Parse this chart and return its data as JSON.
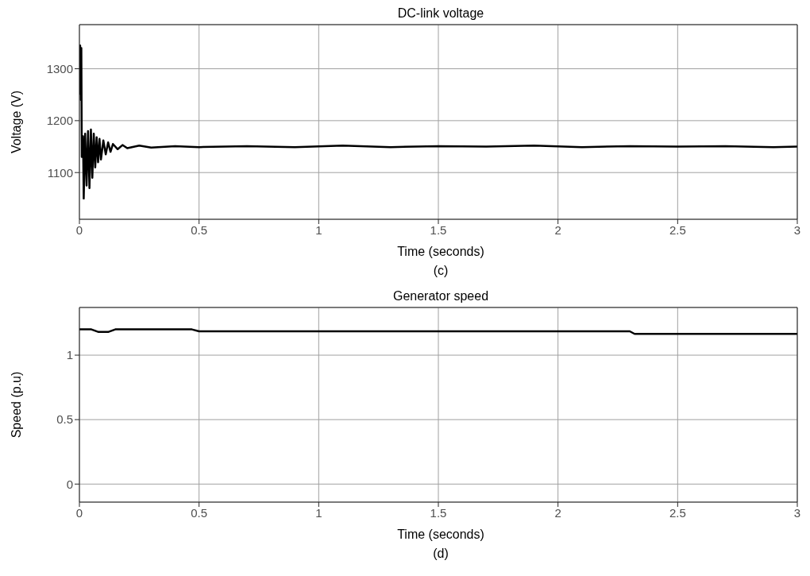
{
  "chart_data": [
    {
      "type": "line",
      "title": "DC-link voltage",
      "xlabel": "Time (seconds)",
      "ylabel": "Voltage (V)",
      "annotations": [
        "(c)"
      ],
      "x": [
        0,
        0.003,
        0.006,
        0.008,
        0.01,
        0.015,
        0.018,
        0.024,
        0.03,
        0.036,
        0.042,
        0.048,
        0.054,
        0.06,
        0.066,
        0.072,
        0.078,
        0.084,
        0.09,
        0.1,
        0.11,
        0.12,
        0.13,
        0.14,
        0.16,
        0.18,
        0.2,
        0.25,
        0.3,
        0.4,
        0.5,
        0.7,
        0.9,
        1.1,
        1.3,
        1.5,
        1.7,
        1.9,
        2.1,
        2.3,
        2.5,
        2.7,
        2.9,
        3
      ],
      "series": [
        {
          "color": "#000000",
          "values": [
            1250,
            1345,
            1240,
            1340,
            1130,
            1170,
            1050,
            1175,
            1075,
            1180,
            1070,
            1183,
            1090,
            1175,
            1110,
            1168,
            1120,
            1165,
            1125,
            1162,
            1135,
            1158,
            1140,
            1155,
            1145,
            1153,
            1147,
            1152,
            1148,
            1151,
            1149,
            1151,
            1149,
            1152,
            1149,
            1151,
            1150,
            1152,
            1149,
            1151,
            1150,
            1151,
            1149,
            1150
          ]
        }
      ],
      "xlim": [
        0,
        3
      ],
      "xticks": [
        0,
        0.5,
        1,
        1.5,
        2,
        2.5,
        3
      ],
      "ylim": [
        1010,
        1385
      ],
      "yticks": [
        1100,
        1200,
        1300
      ],
      "grid": true
    },
    {
      "type": "line",
      "title": "Generator speed",
      "xlabel": "Time (seconds)",
      "ylabel": "Speed (p.u)",
      "annotations": [
        "(d)"
      ],
      "x": [
        0,
        0.05,
        0.08,
        0.12,
        0.15,
        0.3,
        0.47,
        0.5,
        0.8,
        1.2,
        1.6,
        2.0,
        2.3,
        2.32,
        2.6,
        3
      ],
      "series": [
        {
          "color": "#000000",
          "values": [
            1.2,
            1.2,
            1.18,
            1.18,
            1.2,
            1.2,
            1.2,
            1.185,
            1.185,
            1.185,
            1.185,
            1.185,
            1.185,
            1.165,
            1.165,
            1.165
          ]
        }
      ],
      "xlim": [
        0,
        3
      ],
      "xticks": [
        0,
        0.5,
        1,
        1.5,
        2,
        2.5,
        3
      ],
      "ylim": [
        -0.14,
        1.37
      ],
      "yticks": [
        0,
        0.5,
        1
      ],
      "grid": true
    }
  ]
}
